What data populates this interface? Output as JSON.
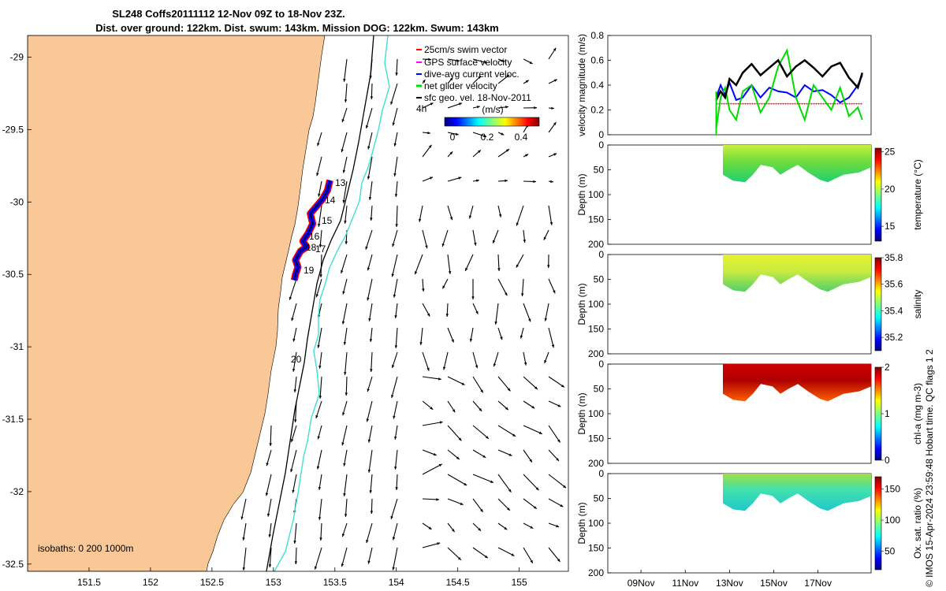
{
  "figure": {
    "title_line1": "SL248 Coffs20111112 12-Nov 09Z to 18-Nov 23Z.",
    "title_line2": "Dist. over ground: 122km. Dist. swum: 143km. Mission DOG: 122km. Swum: 143km",
    "footer": "© IMOS 15-Apr-2024 23:59:48 Hobart time. QC flags 1  2"
  },
  "map": {
    "legend": {
      "swim": "25cm/s swim vector",
      "gps": "GPS surface velocity",
      "dive": "dive-avg current veloc.",
      "net": "net glider velocity",
      "sfc": "sfc geo. vel. 18-Nov-2011",
      "scale_label": "4h"
    },
    "colorbar_unit": "(m/s)",
    "colorbar_ticks": [
      "0",
      "0.2",
      "0.4"
    ],
    "isobaths_label": "isobaths: 0   200  1000m",
    "track_day_labels": [
      "13",
      "14",
      "15",
      "16",
      "17",
      "18",
      "19",
      "20"
    ],
    "colors": {
      "land": "#fac896",
      "isobath_200": "#000000",
      "isobath_1000": "#40e0d0"
    }
  },
  "chart_data": [
    {
      "type": "scatter",
      "title": "",
      "xlabel": "",
      "ylabel": "",
      "xlim": [
        151.0,
        155.4
      ],
      "ylim": [
        -32.55,
        -28.85
      ],
      "x_ticks": [
        "151.5",
        "152",
        "152.5",
        "153",
        "153.5",
        "154",
        "154.5",
        "155"
      ],
      "y_ticks": [
        "-29",
        "-29.5",
        "-30",
        "-30.5",
        "-31",
        "-31.5",
        "-32",
        "-32.5"
      ],
      "series": [
        {
          "name": "glider track",
          "points": [
            [
              153.46,
              -29.85
            ],
            [
              153.44,
              -29.92
            ],
            [
              153.4,
              -29.98
            ],
            [
              153.35,
              -30.03
            ],
            [
              153.3,
              -30.08
            ],
            [
              153.32,
              -30.15
            ],
            [
              153.28,
              -30.22
            ],
            [
              153.24,
              -30.27
            ],
            [
              153.27,
              -30.31
            ],
            [
              153.22,
              -30.34
            ],
            [
              153.18,
              -30.4
            ],
            [
              153.2,
              -30.45
            ],
            [
              153.18,
              -30.5
            ],
            [
              153.17,
              -30.54
            ]
          ]
        }
      ]
    },
    {
      "type": "line",
      "title": "",
      "xlabel": "",
      "ylabel": "velocity magnitude (m/s)",
      "ylim": [
        0,
        0.8
      ],
      "y_ticks": [
        "0",
        "0.2",
        "0.4",
        "0.6",
        "0.8"
      ],
      "x": [
        12.4,
        12.6,
        12.8,
        13.0,
        13.3,
        13.6,
        14.0,
        14.4,
        14.8,
        15.2,
        15.6,
        16.0,
        16.4,
        16.8,
        17.2,
        17.6,
        18.0,
        18.4,
        18.8,
        19.0
      ],
      "series": [
        {
          "name": "25cm/s swim vector",
          "values": [
            0.25,
            0.25,
            0.25,
            0.25,
            0.25,
            0.25,
            0.25,
            0.25,
            0.25,
            0.25,
            0.25,
            0.25,
            0.25,
            0.25,
            0.25,
            0.25,
            0.25,
            0.25,
            0.25,
            0.25
          ]
        },
        {
          "name": "dive-avg current veloc.",
          "values": [
            0.3,
            0.4,
            0.32,
            0.42,
            0.28,
            0.3,
            0.4,
            0.3,
            0.38,
            0.35,
            0.34,
            0.3,
            0.4,
            0.35,
            0.36,
            0.32,
            0.26,
            0.3,
            0.4,
            0.48
          ]
        },
        {
          "name": "net glider velocity",
          "values": [
            0.05,
            0.3,
            0.38,
            0.2,
            0.12,
            0.35,
            0.4,
            0.18,
            0.3,
            0.55,
            0.68,
            0.3,
            0.12,
            0.4,
            0.3,
            0.2,
            0.38,
            0.15,
            0.22,
            0.12
          ]
        },
        {
          "name": "sfc geo. vel. 18-Nov-2011",
          "values": [
            0.28,
            0.35,
            0.3,
            0.45,
            0.4,
            0.5,
            0.57,
            0.48,
            0.54,
            0.6,
            0.47,
            0.55,
            0.6,
            0.54,
            0.47,
            0.55,
            0.58,
            0.46,
            0.38,
            0.5
          ]
        }
      ]
    },
    {
      "type": "heatmap",
      "ylabel": "Depth (m)",
      "ylim": [
        200,
        0
      ],
      "y_ticks": [
        "0",
        "50",
        "100",
        "150",
        "200"
      ],
      "colorbar_label": "temperature (°C)",
      "colorbar_ticks": [
        "15",
        "20",
        "25"
      ],
      "clim": [
        13,
        25.5
      ]
    },
    {
      "type": "heatmap",
      "ylabel": "Depth (m)",
      "ylim": [
        200,
        0
      ],
      "y_ticks": [
        "0",
        "50",
        "100",
        "150",
        "200"
      ],
      "colorbar_label": "salinity",
      "colorbar_ticks": [
        "35.2",
        "35.4",
        "35.6",
        "35.8"
      ],
      "clim": [
        35.1,
        35.8
      ]
    },
    {
      "type": "heatmap",
      "ylabel": "Depth (m)",
      "ylim": [
        200,
        0
      ],
      "y_ticks": [
        "0",
        "50",
        "100",
        "150",
        "200"
      ],
      "colorbar_label": "chl-a (mg m-3)",
      "colorbar_ticks": [
        "0",
        "1",
        "2"
      ],
      "clim": [
        0,
        2
      ]
    },
    {
      "type": "heatmap",
      "ylabel": "Depth (m)",
      "ylim": [
        200,
        0
      ],
      "y_ticks": [
        "0",
        "50",
        "100",
        "150",
        "200"
      ],
      "x_ticks": [
        "09Nov",
        "11Nov",
        "13Nov",
        "15Nov",
        "17Nov"
      ],
      "colorbar_label": "Ox. sat. ratio (%)",
      "colorbar_ticks": [
        "50",
        "100",
        "150"
      ],
      "clim": [
        20,
        170
      ]
    }
  ]
}
